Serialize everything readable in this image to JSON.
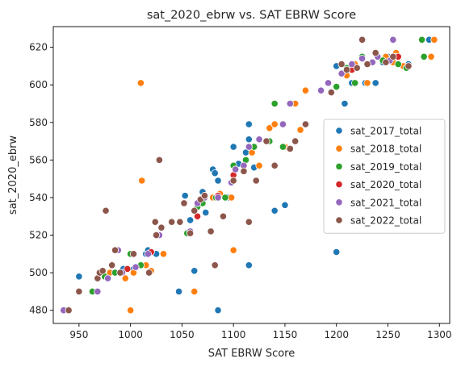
{
  "chart_data": {
    "type": "scatter",
    "title": "sat_2020_ebrw vs. SAT EBRW Score",
    "xlabel": "SAT EBRW Score",
    "ylabel": "sat_2020_ebrw",
    "xlim": [
      925,
      1310
    ],
    "ylim": [
      473,
      631
    ],
    "xticks": [
      950,
      1000,
      1050,
      1100,
      1150,
      1200,
      1250,
      1300
    ],
    "yticks": [
      480,
      500,
      520,
      540,
      560,
      580,
      600,
      620
    ],
    "grid": false,
    "legend_position": "center-right",
    "series": [
      {
        "name": "sat_2017_total",
        "color": "#1f77b4",
        "points": [
          [
            950,
            498
          ],
          [
            970,
            500
          ],
          [
            985,
            500
          ],
          [
            993,
            502
          ],
          [
            1003,
            502
          ],
          [
            1015,
            510
          ],
          [
            1017,
            512
          ],
          [
            1025,
            510
          ],
          [
            1047,
            490
          ],
          [
            1053,
            541
          ],
          [
            1058,
            528
          ],
          [
            1062,
            501
          ],
          [
            1070,
            543
          ],
          [
            1073,
            532
          ],
          [
            1080,
            555
          ],
          [
            1082,
            553
          ],
          [
            1085,
            549
          ],
          [
            1085,
            480
          ],
          [
            1095,
            540
          ],
          [
            1100,
            567
          ],
          [
            1105,
            558
          ],
          [
            1112,
            564
          ],
          [
            1115,
            579
          ],
          [
            1115,
            571
          ],
          [
            1115,
            504
          ],
          [
            1120,
            556
          ],
          [
            1140,
            533
          ],
          [
            1150,
            536
          ],
          [
            1160,
            590
          ],
          [
            1165,
            576
          ],
          [
            1200,
            610
          ],
          [
            1200,
            511
          ],
          [
            1208,
            590
          ],
          [
            1215,
            601
          ],
          [
            1228,
            601
          ],
          [
            1238,
            601
          ],
          [
            1245,
            612
          ],
          [
            1250,
            615
          ],
          [
            1260,
            615
          ],
          [
            1265,
            610
          ],
          [
            1270,
            611
          ],
          [
            1290,
            624
          ]
        ]
      },
      {
        "name": "sat_2018_total",
        "color": "#ff7f0e",
        "points": [
          [
            940,
            480
          ],
          [
            980,
            500
          ],
          [
            995,
            497
          ],
          [
            1000,
            480
          ],
          [
            1003,
            500
          ],
          [
            1010,
            601
          ],
          [
            1011,
            549
          ],
          [
            1015,
            504
          ],
          [
            1020,
            501
          ],
          [
            1032,
            510
          ],
          [
            1062,
            490
          ],
          [
            1065,
            530
          ],
          [
            1080,
            540
          ],
          [
            1087,
            542
          ],
          [
            1098,
            540
          ],
          [
            1100,
            512
          ],
          [
            1118,
            564
          ],
          [
            1125,
            557
          ],
          [
            1135,
            577
          ],
          [
            1140,
            579
          ],
          [
            1150,
            567
          ],
          [
            1160,
            590
          ],
          [
            1165,
            576
          ],
          [
            1170,
            597
          ],
          [
            1210,
            605
          ],
          [
            1218,
            611
          ],
          [
            1230,
            601
          ],
          [
            1248,
            615
          ],
          [
            1255,
            612
          ],
          [
            1258,
            617
          ],
          [
            1265,
            610
          ],
          [
            1292,
            615
          ],
          [
            1295,
            624
          ]
        ]
      },
      {
        "name": "sat_2019_total",
        "color": "#2ca02c",
        "points": [
          [
            938,
            480
          ],
          [
            963,
            490
          ],
          [
            975,
            498
          ],
          [
            985,
            500
          ],
          [
            1000,
            510
          ],
          [
            1010,
            504
          ],
          [
            1040,
            527
          ],
          [
            1055,
            521
          ],
          [
            1065,
            535
          ],
          [
            1070,
            537
          ],
          [
            1083,
            540
          ],
          [
            1092,
            540
          ],
          [
            1100,
            557
          ],
          [
            1112,
            560
          ],
          [
            1120,
            567
          ],
          [
            1140,
            590
          ],
          [
            1135,
            570
          ],
          [
            1148,
            567
          ],
          [
            1200,
            599
          ],
          [
            1210,
            609
          ],
          [
            1218,
            601
          ],
          [
            1225,
            615
          ],
          [
            1245,
            613
          ],
          [
            1257,
            615
          ],
          [
            1260,
            611
          ],
          [
            1268,
            609
          ],
          [
            1283,
            624
          ],
          [
            1285,
            615
          ]
        ]
      },
      {
        "name": "sat_2020_total",
        "color": "#d62728",
        "points": [
          [
            997,
            502
          ],
          [
            1020,
            511
          ],
          [
            1065,
            530
          ],
          [
            1085,
            541
          ],
          [
            1100,
            552
          ],
          [
            1215,
            608
          ],
          [
            1260,
            615
          ]
        ]
      },
      {
        "name": "sat_2021_total",
        "color": "#9467bd",
        "points": [
          [
            935,
            480
          ],
          [
            968,
            490
          ],
          [
            978,
            497
          ],
          [
            988,
            512
          ],
          [
            992,
            500
          ],
          [
            1005,
            503
          ],
          [
            1017,
            510
          ],
          [
            1028,
            520
          ],
          [
            1040,
            527
          ],
          [
            1058,
            522
          ],
          [
            1065,
            537
          ],
          [
            1072,
            540
          ],
          [
            1085,
            540
          ],
          [
            1098,
            548
          ],
          [
            1102,
            555
          ],
          [
            1110,
            557
          ],
          [
            1115,
            567
          ],
          [
            1125,
            571
          ],
          [
            1148,
            579
          ],
          [
            1155,
            590
          ],
          [
            1185,
            597
          ],
          [
            1192,
            601
          ],
          [
            1205,
            606
          ],
          [
            1215,
            611
          ],
          [
            1225,
            614
          ],
          [
            1235,
            612
          ],
          [
            1240,
            615
          ],
          [
            1252,
            613
          ],
          [
            1255,
            624
          ]
        ]
      },
      {
        "name": "sat_2022_total",
        "color": "#8c564b",
        "points": [
          [
            940,
            480
          ],
          [
            950,
            490
          ],
          [
            968,
            497
          ],
          [
            970,
            500
          ],
          [
            973,
            501
          ],
          [
            976,
            533
          ],
          [
            985,
            512
          ],
          [
            982,
            504
          ],
          [
            990,
            500
          ],
          [
            1003,
            510
          ],
          [
            1018,
            500
          ],
          [
            1024,
            527
          ],
          [
            1025,
            520
          ],
          [
            1028,
            560
          ],
          [
            1030,
            524
          ],
          [
            1040,
            527
          ],
          [
            1048,
            527
          ],
          [
            1052,
            537
          ],
          [
            1058,
            521
          ],
          [
            1062,
            533
          ],
          [
            1068,
            539
          ],
          [
            1072,
            541
          ],
          [
            1078,
            522
          ],
          [
            1082,
            504
          ],
          [
            1090,
            530
          ],
          [
            1100,
            549
          ],
          [
            1110,
            554
          ],
          [
            1115,
            527
          ],
          [
            1122,
            549
          ],
          [
            1132,
            570
          ],
          [
            1140,
            557
          ],
          [
            1155,
            566
          ],
          [
            1160,
            570
          ],
          [
            1170,
            579
          ],
          [
            1195,
            596
          ],
          [
            1205,
            611
          ],
          [
            1210,
            608
          ],
          [
            1220,
            609
          ],
          [
            1225,
            624
          ],
          [
            1230,
            611
          ],
          [
            1238,
            617
          ],
          [
            1248,
            612
          ],
          [
            1255,
            615
          ],
          [
            1270,
            610
          ]
        ]
      }
    ]
  }
}
